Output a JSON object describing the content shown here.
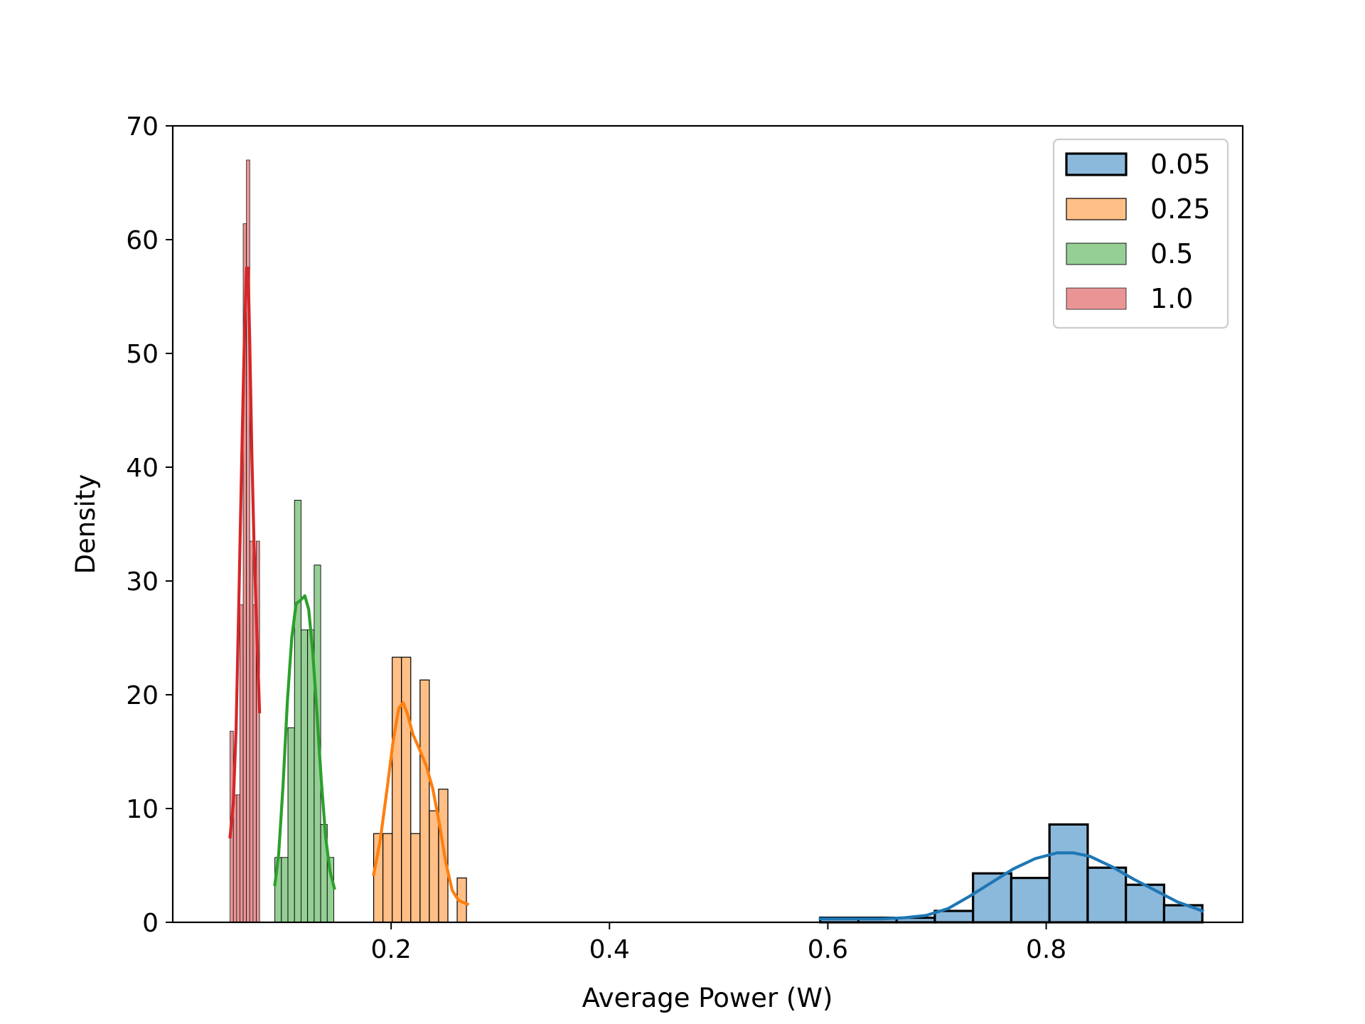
{
  "chart_data": {
    "type": "histogram",
    "title": "",
    "xlabel": "Average Power (W)",
    "ylabel": "Density",
    "xlim": [
      0.0,
      0.98
    ],
    "ylim": [
      0,
      70
    ],
    "xticks": [
      {
        "value": 0.2,
        "label": "0.2"
      },
      {
        "value": 0.4,
        "label": "0.4"
      },
      {
        "value": 0.6,
        "label": "0.6"
      },
      {
        "value": 0.8,
        "label": "0.8"
      }
    ],
    "yticks": [
      {
        "value": 0,
        "label": "0"
      },
      {
        "value": 10,
        "label": "10"
      },
      {
        "value": 20,
        "label": "20"
      },
      {
        "value": 30,
        "label": "30"
      },
      {
        "value": 40,
        "label": "40"
      },
      {
        "value": 50,
        "label": "50"
      },
      {
        "value": 60,
        "label": "60"
      },
      {
        "value": 70,
        "label": "70"
      }
    ],
    "grid": false,
    "legend_position": "top-right",
    "series": [
      {
        "name": "0.05",
        "fill": "#8bb9dc",
        "line": "#1f77b4",
        "edge": "#000000",
        "edge_width": 3.2,
        "bins": [
          {
            "x0": 0.593,
            "x1": 0.628,
            "y": 0.4
          },
          {
            "x0": 0.628,
            "x1": 0.663,
            "y": 0.4
          },
          {
            "x0": 0.663,
            "x1": 0.698,
            "y": 0.4
          },
          {
            "x0": 0.698,
            "x1": 0.733,
            "y": 1.0
          },
          {
            "x0": 0.733,
            "x1": 0.768,
            "y": 4.3
          },
          {
            "x0": 0.768,
            "x1": 0.803,
            "y": 3.9
          },
          {
            "x0": 0.803,
            "x1": 0.838,
            "y": 8.6
          },
          {
            "x0": 0.838,
            "x1": 0.873,
            "y": 4.8
          },
          {
            "x0": 0.873,
            "x1": 0.908,
            "y": 3.3
          },
          {
            "x0": 0.908,
            "x1": 0.943,
            "y": 1.5
          }
        ],
        "kde": [
          [
            0.593,
            0.3
          ],
          [
            0.62,
            0.3
          ],
          [
            0.65,
            0.3
          ],
          [
            0.67,
            0.4
          ],
          [
            0.69,
            0.6
          ],
          [
            0.71,
            1.2
          ],
          [
            0.73,
            2.3
          ],
          [
            0.75,
            3.5
          ],
          [
            0.77,
            4.7
          ],
          [
            0.79,
            5.6
          ],
          [
            0.81,
            6.1
          ],
          [
            0.825,
            6.1
          ],
          [
            0.84,
            5.8
          ],
          [
            0.86,
            4.9
          ],
          [
            0.88,
            3.8
          ],
          [
            0.9,
            2.8
          ],
          [
            0.92,
            1.8
          ],
          [
            0.943,
            1.0
          ]
        ]
      },
      {
        "name": "0.25",
        "fill": "#ffbf86",
        "line": "#ff7f0e",
        "edge": "#000000",
        "edge_width": 1.2,
        "bins": [
          {
            "x0": 0.184,
            "x1": 0.1925,
            "y": 7.8
          },
          {
            "x0": 0.1925,
            "x1": 0.201,
            "y": 7.8
          },
          {
            "x0": 0.201,
            "x1": 0.2095,
            "y": 23.3
          },
          {
            "x0": 0.2095,
            "x1": 0.218,
            "y": 23.3
          },
          {
            "x0": 0.218,
            "x1": 0.2265,
            "y": 7.8
          },
          {
            "x0": 0.2265,
            "x1": 0.235,
            "y": 21.3
          },
          {
            "x0": 0.235,
            "x1": 0.2435,
            "y": 9.8
          },
          {
            "x0": 0.2435,
            "x1": 0.252,
            "y": 11.7
          },
          {
            "x0": 0.252,
            "x1": 0.2605,
            "y": 0.0
          },
          {
            "x0": 0.2605,
            "x1": 0.269,
            "y": 3.9
          }
        ],
        "kde": [
          [
            0.184,
            4.2
          ],
          [
            0.19,
            7.2
          ],
          [
            0.196,
            11.5
          ],
          [
            0.202,
            16.0
          ],
          [
            0.207,
            18.8
          ],
          [
            0.211,
            19.3
          ],
          [
            0.215,
            18.3
          ],
          [
            0.22,
            16.5
          ],
          [
            0.226,
            15.2
          ],
          [
            0.232,
            13.8
          ],
          [
            0.238,
            11.8
          ],
          [
            0.244,
            8.8
          ],
          [
            0.25,
            5.3
          ],
          [
            0.256,
            2.8
          ],
          [
            0.262,
            1.9
          ],
          [
            0.27,
            1.6
          ]
        ]
      },
      {
        "name": "0.5",
        "fill": "#95cf95",
        "line": "#2ca02c",
        "edge": "#000000",
        "edge_width": 0.9,
        "bins": [
          {
            "x0": 0.0935,
            "x1": 0.0995,
            "y": 5.7
          },
          {
            "x0": 0.0995,
            "x1": 0.1055,
            "y": 5.7
          },
          {
            "x0": 0.1055,
            "x1": 0.1115,
            "y": 17.1
          },
          {
            "x0": 0.1115,
            "x1": 0.1175,
            "y": 37.1
          },
          {
            "x0": 0.1175,
            "x1": 0.1235,
            "y": 25.7
          },
          {
            "x0": 0.1235,
            "x1": 0.1295,
            "y": 25.7
          },
          {
            "x0": 0.1295,
            "x1": 0.1355,
            "y": 31.4
          },
          {
            "x0": 0.1355,
            "x1": 0.1415,
            "y": 8.6
          },
          {
            "x0": 0.1415,
            "x1": 0.1475,
            "y": 5.7
          }
        ],
        "kde": [
          [
            0.0935,
            3.3
          ],
          [
            0.097,
            6.0
          ],
          [
            0.101,
            12.0
          ],
          [
            0.105,
            19.5
          ],
          [
            0.109,
            25.0
          ],
          [
            0.113,
            28.0
          ],
          [
            0.117,
            28.3
          ],
          [
            0.121,
            28.7
          ],
          [
            0.1245,
            27.5
          ],
          [
            0.128,
            24.0
          ],
          [
            0.132,
            18.5
          ],
          [
            0.136,
            12.5
          ],
          [
            0.14,
            7.5
          ],
          [
            0.144,
            4.5
          ],
          [
            0.148,
            3.0
          ]
        ]
      },
      {
        "name": "1.0",
        "fill": "#e99596",
        "line": "#d62728",
        "edge": "#000000",
        "edge_width": 0.7,
        "bins": [
          {
            "x0": 0.0525,
            "x1": 0.0555,
            "y": 16.8
          },
          {
            "x0": 0.0555,
            "x1": 0.0585,
            "y": 11.2
          },
          {
            "x0": 0.0585,
            "x1": 0.0615,
            "y": 11.2
          },
          {
            "x0": 0.0615,
            "x1": 0.0645,
            "y": 27.9
          },
          {
            "x0": 0.0645,
            "x1": 0.0675,
            "y": 61.4
          },
          {
            "x0": 0.0675,
            "x1": 0.0705,
            "y": 67.0
          },
          {
            "x0": 0.0705,
            "x1": 0.0735,
            "y": 33.5
          },
          {
            "x0": 0.0735,
            "x1": 0.0765,
            "y": 27.9
          },
          {
            "x0": 0.0765,
            "x1": 0.0795,
            "y": 33.5
          }
        ],
        "kde": [
          [
            0.0525,
            7.5
          ],
          [
            0.0555,
            10.5
          ],
          [
            0.058,
            17.0
          ],
          [
            0.0605,
            28.0
          ],
          [
            0.063,
            40.0
          ],
          [
            0.0655,
            51.0
          ],
          [
            0.0675,
            57.5
          ],
          [
            0.069,
            57.5
          ],
          [
            0.0705,
            51.0
          ],
          [
            0.0725,
            41.0
          ],
          [
            0.0745,
            33.0
          ],
          [
            0.0765,
            27.0
          ],
          [
            0.0795,
            18.5
          ]
        ]
      }
    ]
  }
}
